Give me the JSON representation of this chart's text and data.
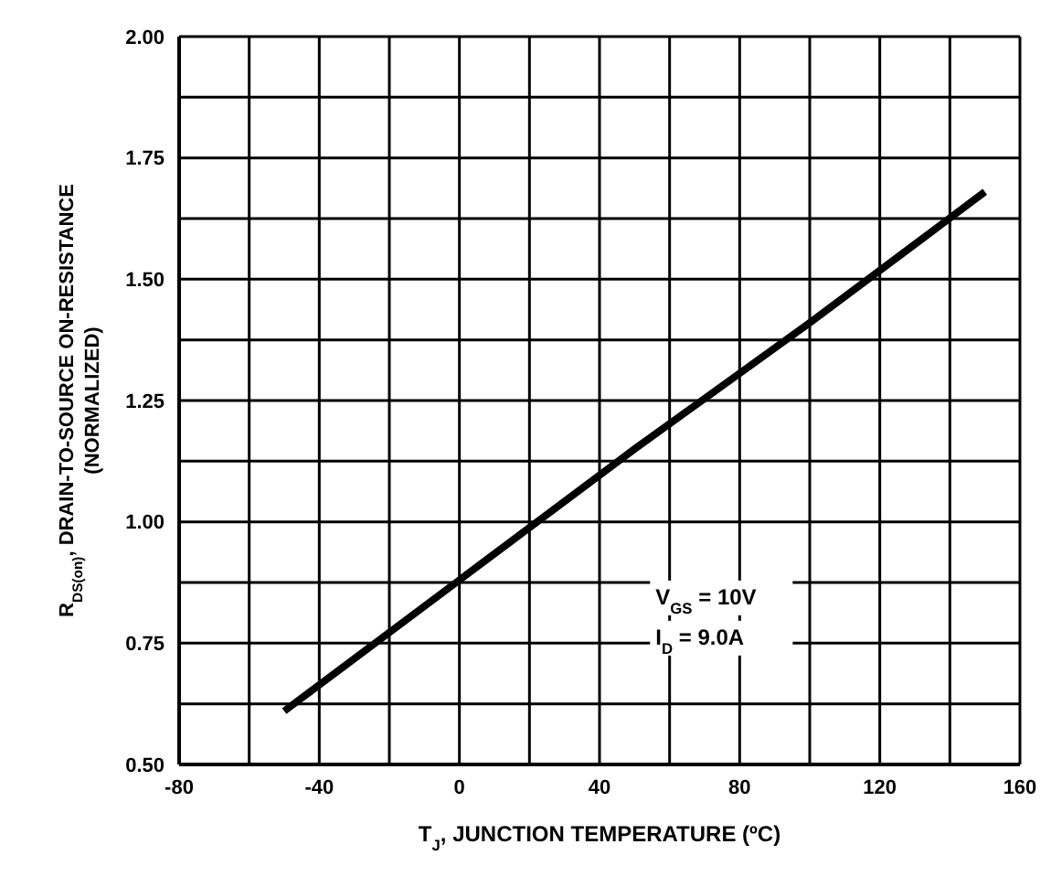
{
  "chart_data": {
    "type": "line",
    "xlabel": "T$_{J}$, JUNCTION TEMPERATURE (ºC)",
    "ylabel": "R$_{DS(on)}$, DRAIN-TO-SOURCE ON-RESISTANCE\n(NORMALIZED)",
    "annotations": [
      "V$_{GS}$ = 10V",
      "I$_{D}$ = 9.0A"
    ],
    "x": [
      -50,
      0,
      50,
      100,
      150
    ],
    "series": [
      {
        "color": "#000000",
        "values": [
          0.61,
          0.88,
          1.15,
          1.41,
          1.68
        ]
      }
    ],
    "xlim": [
      -80,
      160
    ],
    "xticks": [
      -80,
      {
        "value": -60,
        "label": null
      },
      -40,
      {
        "value": -20,
        "label": null
      },
      0,
      {
        "value": 20,
        "label": null
      },
      40,
      {
        "value": 60,
        "label": null
      },
      80,
      {
        "value": 100,
        "label": null
      },
      120,
      {
        "value": 140,
        "label": null
      },
      160
    ],
    "ylim": [
      0.5,
      2.0
    ],
    "yticks": [
      {
        "value": 0.5,
        "label": "0.50"
      },
      {
        "value": 0.625,
        "label": null
      },
      {
        "value": 0.75,
        "label": "0.75"
      },
      {
        "value": 0.875,
        "label": null
      },
      {
        "value": 1.0,
        "label": "1.00"
      },
      {
        "value": 1.125,
        "label": null
      },
      {
        "value": 1.25,
        "label": "1.25"
      },
      {
        "value": 1.375,
        "label": null
      },
      {
        "value": 1.5,
        "label": "1.50"
      },
      {
        "value": 1.625,
        "label": null
      },
      {
        "value": 1.75,
        "label": "1.75"
      },
      {
        "value": 1.875,
        "label": null
      },
      {
        "value": 2.0,
        "label": "2.00"
      }
    ],
    "grid": true,
    "marker": "none",
    "line_style": "solid"
  }
}
